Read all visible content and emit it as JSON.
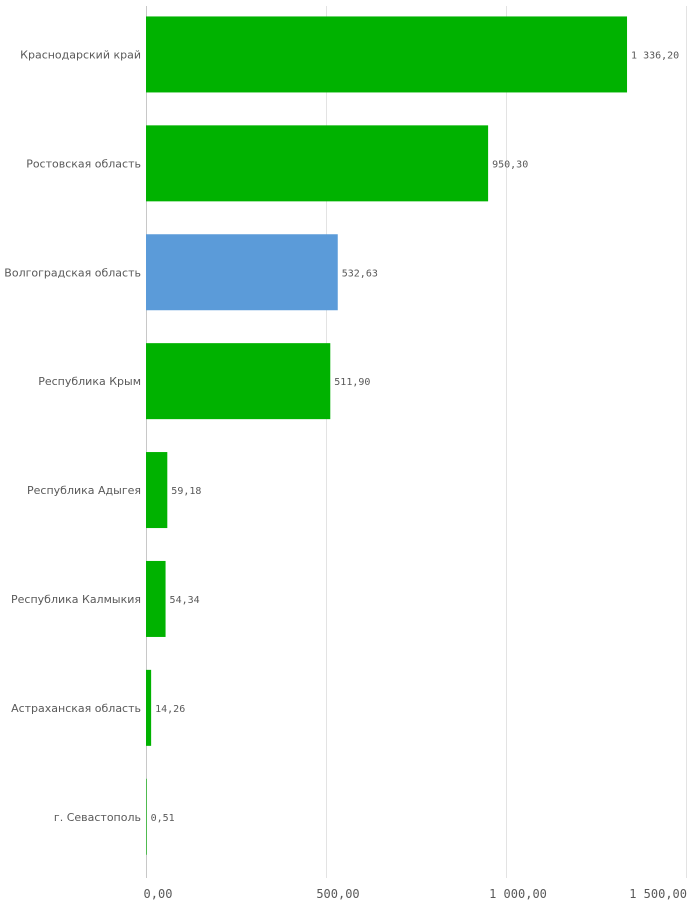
{
  "chart_data": {
    "type": "bar",
    "orientation": "horizontal",
    "categories": [
      "Краснодарский край",
      "Ростовская область",
      "Волгоградская область",
      "Республика Крым",
      "Республика Адыгея",
      "Республика Калмыкия",
      "Астраханская область",
      "г. Севастополь"
    ],
    "values": [
      1336.2,
      950.3,
      532.63,
      511.9,
      59.18,
      54.34,
      14.26,
      0.51
    ],
    "value_labels": [
      "1 336,20",
      "950,30",
      "532,63",
      "511,90",
      "59,18",
      "54,34",
      "14,26",
      "0,51"
    ],
    "highlighted_index": 2,
    "colors": {
      "bar": "#00b200",
      "highlight": "#5b9bd9"
    },
    "xlim": [
      0,
      1500
    ],
    "x_ticks": [
      0,
      500,
      1000,
      1500
    ],
    "x_tick_labels": [
      "0,00",
      "500,00",
      "1 000,00",
      "1 500,00"
    ],
    "grid": true,
    "legend": "none",
    "title": "",
    "xlabel": "",
    "ylabel": ""
  }
}
